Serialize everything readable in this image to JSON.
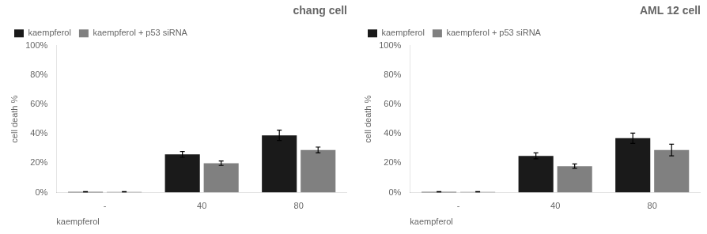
{
  "chart_data": [
    {
      "type": "bar",
      "title": "chang cell",
      "xlabel": "kaempferol",
      "ylabel": "cell death %",
      "categories": [
        "-",
        "40",
        "80"
      ],
      "series": [
        {
          "name": "kaempferol",
          "color": "#1a1a1a",
          "values": [
            0.5,
            26,
            39
          ],
          "errors": [
            0.2,
            2.0,
            3.5
          ]
        },
        {
          "name": "kaempferol + p53 siRNA",
          "color": "#808080",
          "values": [
            0.5,
            20,
            29
          ],
          "errors": [
            0.2,
            1.5,
            2.0
          ]
        }
      ],
      "ylim": [
        0,
        100
      ],
      "yticks": [
        {
          "value": 0,
          "label": "0%"
        },
        {
          "value": 20,
          "label": "20%"
        },
        {
          "value": 40,
          "label": "40%"
        },
        {
          "value": 60,
          "label": "60%"
        },
        {
          "value": 80,
          "label": "80%"
        },
        {
          "value": 100,
          "label": "100%"
        }
      ],
      "grid": false,
      "legend": "top left"
    },
    {
      "type": "bar",
      "title": "AML 12 cell",
      "xlabel": "kaempferol",
      "ylabel": "cell death %",
      "categories": [
        "-",
        "40",
        "80"
      ],
      "series": [
        {
          "name": "kaempferol",
          "color": "#1a1a1a",
          "values": [
            0.5,
            25,
            37
          ],
          "errors": [
            0.2,
            2.0,
            3.5
          ]
        },
        {
          "name": "kaempferol + p53 siRNA",
          "color": "#808080",
          "values": [
            0.5,
            18,
            29
          ],
          "errors": [
            0.2,
            1.5,
            4.0
          ]
        }
      ],
      "ylim": [
        0,
        100
      ],
      "yticks": [
        {
          "value": 0,
          "label": "0%"
        },
        {
          "value": 20,
          "label": "20%"
        },
        {
          "value": 40,
          "label": "40%"
        },
        {
          "value": 60,
          "label": "60%"
        },
        {
          "value": 80,
          "label": "80%"
        },
        {
          "value": 100,
          "label": "100%"
        }
      ],
      "grid": false,
      "legend": "top left"
    }
  ]
}
